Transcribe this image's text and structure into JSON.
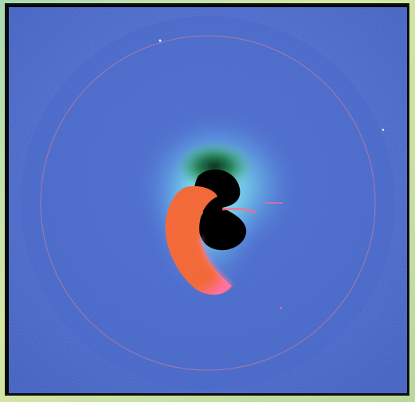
{
  "image": {
    "description_tags": [
      "solar-coronagraph",
      "false-color",
      "blue-field",
      "orange-crescent",
      "black-core"
    ],
    "colors": {
      "outer_frame": "#c9e3a9",
      "field": "#4a68c9",
      "field_light": "#5f83dd",
      "cyan_glow": "#7fe7ef",
      "green_glow": "#49c57a",
      "core": "#000000",
      "crescent": "#f36a3a",
      "crescent_edge": "#ff7fa2",
      "ring": "#c77c9a"
    }
  }
}
